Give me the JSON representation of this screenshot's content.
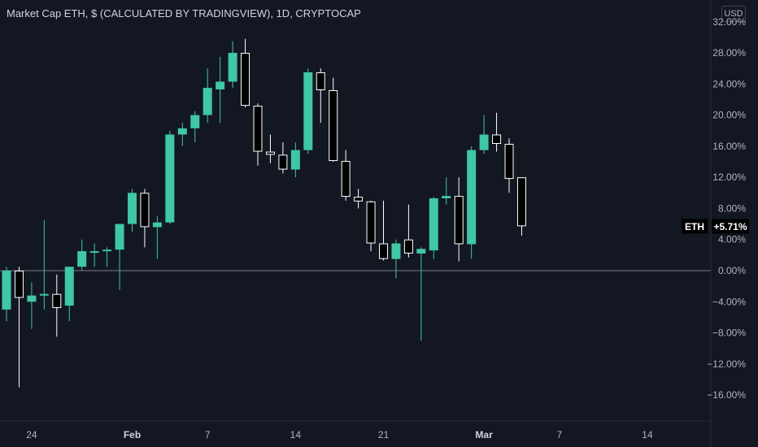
{
  "header": {
    "title": "Market Cap ETH, $ (CALCULATED BY TRADINGVIEW), 1D, CRYPTOCAP",
    "currency_button": "USD"
  },
  "colors": {
    "background": "#131722",
    "bull": "#3fc7a6",
    "bear_body": "#000000",
    "bear_border": "#ffffff",
    "wick_bull": "#3fc7a6",
    "wick_bear": "#ffffff",
    "zero_line": "#787b86",
    "axis_text": "#b2b5be"
  },
  "current_label": {
    "symbol": "ETH",
    "value_text": "+5.71%",
    "value": 5.71
  },
  "chart_data": {
    "type": "candlestick",
    "y_axis": {
      "range": [
        -19,
        32.5
      ],
      "unit": "%",
      "ticks": [
        {
          "value": 32,
          "label": "32.00%"
        },
        {
          "value": 28,
          "label": "28.00%"
        },
        {
          "value": 24,
          "label": "24.00%"
        },
        {
          "value": 20,
          "label": "20.00%"
        },
        {
          "value": 16,
          "label": "16.00%"
        },
        {
          "value": 12,
          "label": "12.00%"
        },
        {
          "value": 8,
          "label": "8.00%"
        },
        {
          "value": 4,
          "label": "4.00%"
        },
        {
          "value": 0,
          "label": "0.00%"
        },
        {
          "value": -4,
          "label": "−4.00%"
        },
        {
          "value": -8,
          "label": "−8.00%"
        },
        {
          "value": -12,
          "label": "−12.00%"
        },
        {
          "value": -16,
          "label": "−16.00%"
        }
      ]
    },
    "x_axis": {
      "ticks": [
        {
          "date": "2022-01-24",
          "label": "24",
          "bold": false
        },
        {
          "date": "2022-02-01",
          "label": "Feb",
          "bold": true
        },
        {
          "date": "2022-02-07",
          "label": "7",
          "bold": false
        },
        {
          "date": "2022-02-14",
          "label": "14",
          "bold": false
        },
        {
          "date": "2022-02-21",
          "label": "21",
          "bold": false
        },
        {
          "date": "2022-03-01",
          "label": "Mar",
          "bold": true
        },
        {
          "date": "2022-03-07",
          "label": "7",
          "bold": false
        },
        {
          "date": "2022-03-14",
          "label": "14",
          "bold": false
        }
      ]
    },
    "reference_line": 0,
    "candles": [
      {
        "date": "2022-01-22",
        "o": -5,
        "h": 0.5,
        "l": -6.5,
        "c": 0
      },
      {
        "date": "2022-01-23",
        "o": 0,
        "h": 0.5,
        "l": -15,
        "c": -3.5
      },
      {
        "date": "2022-01-24",
        "o": -4,
        "h": -1.5,
        "l": -7.5,
        "c": -3.2
      },
      {
        "date": "2022-01-25",
        "o": -3.2,
        "h": 6.5,
        "l": -5,
        "c": -3
      },
      {
        "date": "2022-01-26",
        "o": -3,
        "h": -0.5,
        "l": -8.5,
        "c": -4.8
      },
      {
        "date": "2022-01-27",
        "o": -4.5,
        "h": 0.5,
        "l": -6.5,
        "c": 0.5
      },
      {
        "date": "2022-01-28",
        "o": 0.5,
        "h": 4,
        "l": 0,
        "c": 2.5
      },
      {
        "date": "2022-01-29",
        "o": 2.3,
        "h": 3.5,
        "l": 0.5,
        "c": 2.5
      },
      {
        "date": "2022-01-30",
        "o": 2.5,
        "h": 3,
        "l": 0.5,
        "c": 2.7
      },
      {
        "date": "2022-01-31",
        "o": 2.7,
        "h": 6,
        "l": -2.5,
        "c": 6
      },
      {
        "date": "2022-02-01",
        "o": 6,
        "h": 10.5,
        "l": 5,
        "c": 10
      },
      {
        "date": "2022-02-02",
        "o": 10,
        "h": 10.5,
        "l": 3,
        "c": 5.6
      },
      {
        "date": "2022-02-03",
        "o": 5.6,
        "h": 7,
        "l": 1.5,
        "c": 6.2
      },
      {
        "date": "2022-02-04",
        "o": 6.2,
        "h": 18,
        "l": 6,
        "c": 17.5
      },
      {
        "date": "2022-02-05",
        "o": 17.5,
        "h": 19,
        "l": 16,
        "c": 18.3
      },
      {
        "date": "2022-02-06",
        "o": 18.3,
        "h": 20.5,
        "l": 16.5,
        "c": 20
      },
      {
        "date": "2022-02-07",
        "o": 20,
        "h": 26,
        "l": 19,
        "c": 23.5
      },
      {
        "date": "2022-02-08",
        "o": 23.3,
        "h": 27.5,
        "l": 19,
        "c": 24.3
      },
      {
        "date": "2022-02-09",
        "o": 24.3,
        "h": 29.5,
        "l": 23.5,
        "c": 28
      },
      {
        "date": "2022-02-10",
        "o": 28,
        "h": 29.8,
        "l": 21,
        "c": 21.2
      },
      {
        "date": "2022-02-11",
        "o": 21.2,
        "h": 21.5,
        "l": 13.5,
        "c": 15.3
      },
      {
        "date": "2022-02-12",
        "o": 15.3,
        "h": 17.5,
        "l": 13.8,
        "c": 14.9
      },
      {
        "date": "2022-02-13",
        "o": 14.9,
        "h": 16.5,
        "l": 12.5,
        "c": 13
      },
      {
        "date": "2022-02-14",
        "o": 13,
        "h": 16.5,
        "l": 12,
        "c": 15.5
      },
      {
        "date": "2022-02-15",
        "o": 15.5,
        "h": 26,
        "l": 15,
        "c": 25.5
      },
      {
        "date": "2022-02-16",
        "o": 25.5,
        "h": 26,
        "l": 19,
        "c": 23.2
      },
      {
        "date": "2022-02-17",
        "o": 23.2,
        "h": 24.8,
        "l": 14,
        "c": 14.1
      },
      {
        "date": "2022-02-18",
        "o": 14.1,
        "h": 15.5,
        "l": 9,
        "c": 9.5
      },
      {
        "date": "2022-02-19",
        "o": 9.5,
        "h": 10.5,
        "l": 8,
        "c": 8.9
      },
      {
        "date": "2022-02-20",
        "o": 8.9,
        "h": 9,
        "l": 2.5,
        "c": 3.5
      },
      {
        "date": "2022-02-21",
        "o": 3.5,
        "h": 9,
        "l": 1.3,
        "c": 1.5
      },
      {
        "date": "2022-02-22",
        "o": 1.5,
        "h": 4,
        "l": -1,
        "c": 3.5
      },
      {
        "date": "2022-02-23",
        "o": 4,
        "h": 8.5,
        "l": 1.7,
        "c": 2.2
      },
      {
        "date": "2022-02-24",
        "o": 2.2,
        "h": 3,
        "l": -9,
        "c": 2.8
      },
      {
        "date": "2022-02-25",
        "o": 2.6,
        "h": 9.5,
        "l": 1.5,
        "c": 9.3
      },
      {
        "date": "2022-02-26",
        "o": 9.3,
        "h": 12,
        "l": 8.5,
        "c": 9.6
      },
      {
        "date": "2022-02-27",
        "o": 9.6,
        "h": 12,
        "l": 1.2,
        "c": 3.4
      },
      {
        "date": "2022-02-28",
        "o": 3.4,
        "h": 16,
        "l": 1.5,
        "c": 15.5
      },
      {
        "date": "2022-03-01",
        "o": 15.5,
        "h": 20,
        "l": 15,
        "c": 17.5
      },
      {
        "date": "2022-03-02",
        "o": 17.5,
        "h": 20.3,
        "l": 15.3,
        "c": 16.3
      },
      {
        "date": "2022-03-03",
        "o": 16.3,
        "h": 17,
        "l": 10,
        "c": 11.8
      },
      {
        "date": "2022-03-04",
        "o": 12,
        "h": 12,
        "l": 4.5,
        "c": 5.71
      }
    ]
  }
}
